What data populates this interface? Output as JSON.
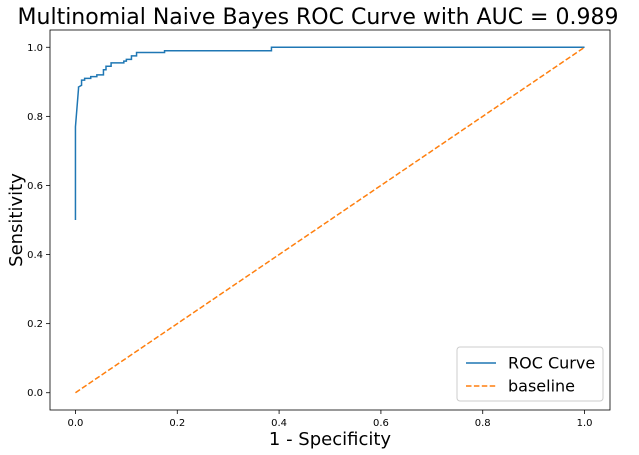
{
  "chart_data": {
    "type": "line",
    "title": "Multinomial Naive Bayes ROC Curve with AUC = 0.989",
    "xlabel": "1 - Specificity",
    "ylabel": "Sensitivity",
    "xlim": [
      -0.05,
      1.05
    ],
    "ylim": [
      -0.05,
      1.05
    ],
    "xticks": [
      0.0,
      0.2,
      0.4,
      0.6,
      0.8,
      1.0
    ],
    "yticks": [
      0.0,
      0.2,
      0.4,
      0.6,
      0.8,
      1.0
    ],
    "xtick_labels": [
      "0.0",
      "0.2",
      "0.4",
      "0.6",
      "0.8",
      "1.0"
    ],
    "ytick_labels": [
      "0.0",
      "0.2",
      "0.4",
      "0.6",
      "0.8",
      "1.0"
    ],
    "grid": false,
    "legend_position": "bottom-right",
    "series": [
      {
        "name": "ROC Curve",
        "color": "#1f77b4",
        "style": "solid",
        "x": [
          0.0,
          0.0,
          0.006,
          0.006,
          0.012,
          0.012,
          0.018,
          0.018,
          0.03,
          0.03,
          0.042,
          0.042,
          0.055,
          0.055,
          0.06,
          0.06,
          0.07,
          0.07,
          0.095,
          0.095,
          0.1,
          0.1,
          0.11,
          0.11,
          0.12,
          0.12,
          0.175,
          0.175,
          0.385,
          0.385,
          1.0
        ],
        "y": [
          0.5,
          0.77,
          0.88,
          0.885,
          0.89,
          0.905,
          0.905,
          0.91,
          0.91,
          0.915,
          0.915,
          0.92,
          0.92,
          0.935,
          0.935,
          0.945,
          0.945,
          0.955,
          0.955,
          0.96,
          0.96,
          0.965,
          0.965,
          0.975,
          0.975,
          0.985,
          0.985,
          0.99,
          0.99,
          1.0,
          1.0
        ]
      },
      {
        "name": "baseline",
        "color": "#ff7f0e",
        "style": "dashed",
        "x": [
          0.0,
          1.0
        ],
        "y": [
          0.0,
          1.0
        ]
      }
    ]
  }
}
